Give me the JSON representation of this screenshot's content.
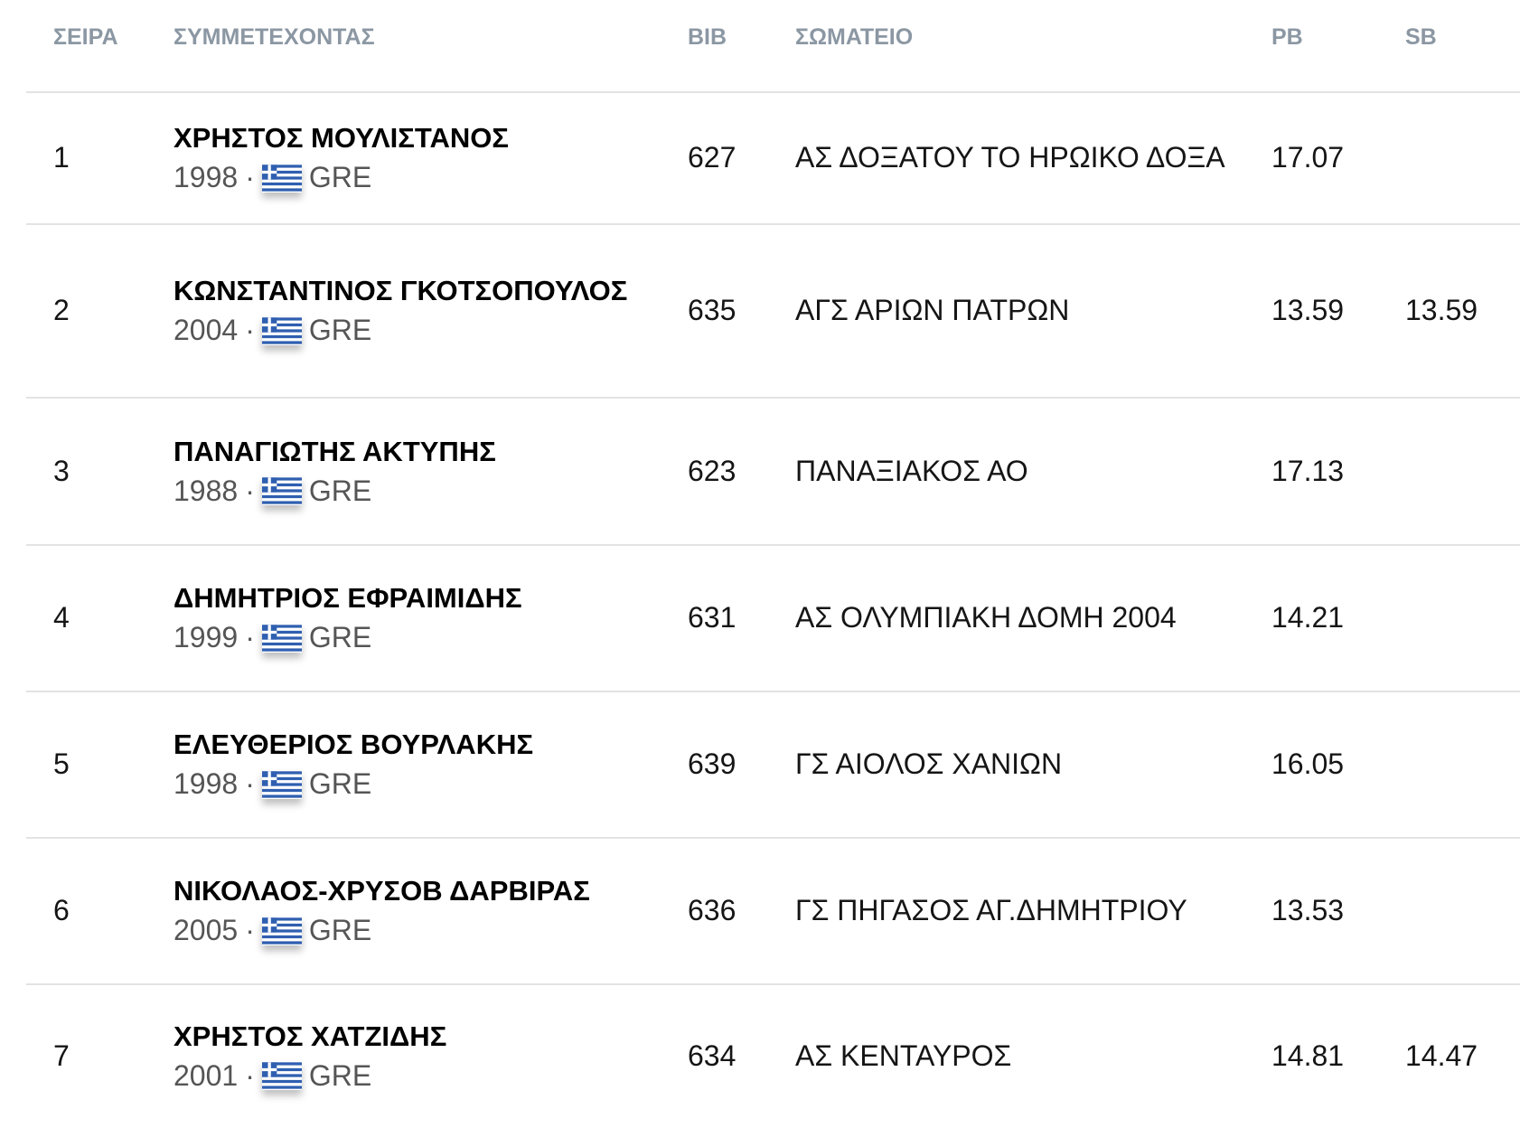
{
  "columns": {
    "rank": "ΣΕΙΡΑ",
    "athlete": "ΣΥΜΜΕΤΕΧΟΝΤΑΣ",
    "bib": "BIB",
    "club": "ΣΩΜΑΤΕΙΟ",
    "pb": "PB",
    "sb": "SB"
  },
  "flag_icon": "greece-flag-icon",
  "flag_colors": {
    "blue": "#2f5fb0",
    "white": "#ffffff"
  },
  "rows": [
    {
      "rank": "1",
      "name": "ΧΡΗΣΤΟΣ ΜΟΥΛΙΣΤΑΝΟΣ",
      "year": "1998",
      "sep": "·",
      "country": "GRE",
      "bib": "627",
      "club": "ΑΣ ΔΟΞΑΤΟΥ ΤΟ ΗΡΩΙΚΟ ΔΟΞΑ",
      "pb": "17.07",
      "sb": ""
    },
    {
      "rank": "2",
      "name": "ΚΩΝΣΤΑΝΤΙΝΟΣ ΓΚΟΤΣΟΠΟΥΛΟΣ",
      "year": "2004",
      "sep": "·",
      "country": "GRE",
      "bib": "635",
      "club": "ΑΓΣ ΑΡΙΩΝ ΠΑΤΡΩΝ",
      "pb": "13.59",
      "sb": "13.59"
    },
    {
      "rank": "3",
      "name": "ΠΑΝΑΓΙΩΤΗΣ ΑΚΤΥΠΗΣ",
      "year": "1988",
      "sep": "·",
      "country": "GRE",
      "bib": "623",
      "club": "ΠΑΝΑΞΙΑΚΟΣ ΑΟ",
      "pb": "17.13",
      "sb": ""
    },
    {
      "rank": "4",
      "name": "ΔΗΜΗΤΡΙΟΣ ΕΦΡΑΙΜΙΔΗΣ",
      "year": "1999",
      "sep": "·",
      "country": "GRE",
      "bib": "631",
      "club": "ΑΣ ΟΛΥΜΠΙΑΚΗ ΔΟΜΗ 2004",
      "pb": "14.21",
      "sb": ""
    },
    {
      "rank": "5",
      "name": "ΕΛΕΥΘΕΡΙΟΣ ΒΟΥΡΛΑΚΗΣ",
      "year": "1998",
      "sep": "·",
      "country": "GRE",
      "bib": "639",
      "club": "ΓΣ ΑΙΟΛΟΣ ΧΑΝΙΩΝ",
      "pb": "16.05",
      "sb": ""
    },
    {
      "rank": "6",
      "name": "ΝΙΚΟΛΑΟΣ-ΧΡΥΣΟΒ ΔΑΡΒΙΡΑΣ",
      "year": "2005",
      "sep": "·",
      "country": "GRE",
      "bib": "636",
      "club": "ΓΣ ΠΗΓΑΣΟΣ ΑΓ.ΔΗΜΗΤΡΙΟΥ",
      "pb": "13.53",
      "sb": ""
    },
    {
      "rank": "7",
      "name": "ΧΡΗΣΤΟΣ ΧΑΤΖΙΔΗΣ",
      "year": "2001",
      "sep": "·",
      "country": "GRE",
      "bib": "634",
      "club": "ΑΣ ΚΕΝΤΑΥΡΟΣ",
      "pb": "14.81",
      "sb": "14.47"
    }
  ]
}
